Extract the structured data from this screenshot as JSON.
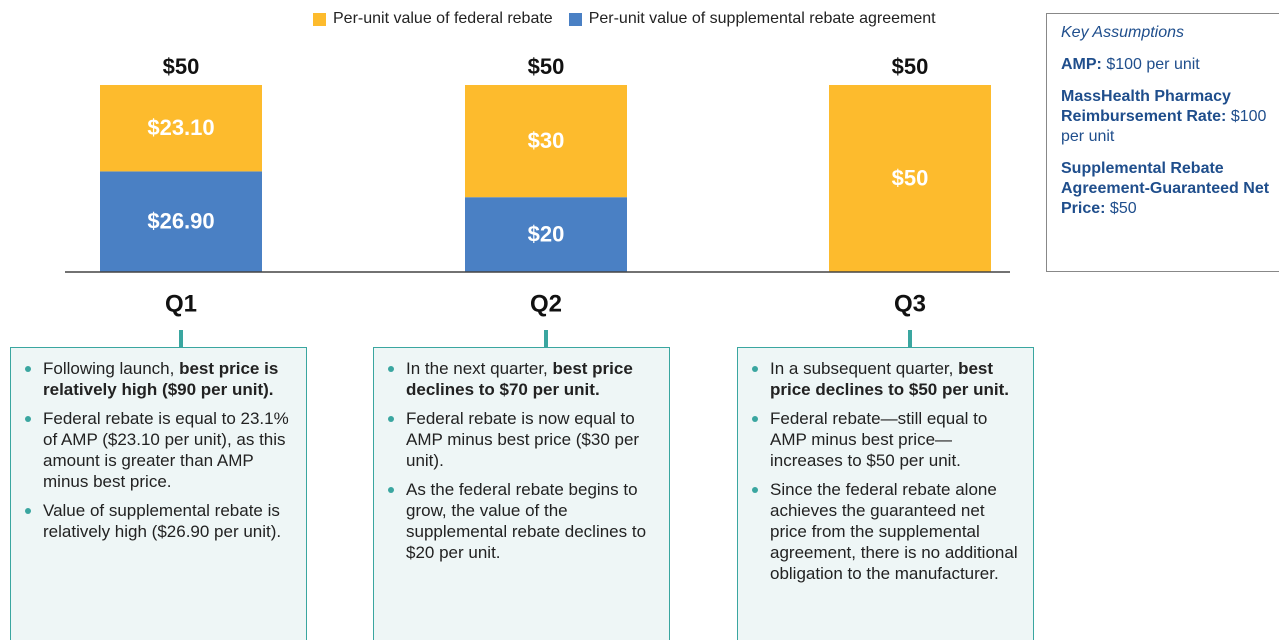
{
  "chart_data": {
    "type": "stacked_bar",
    "categories": [
      "Q1",
      "Q2",
      "Q3"
    ],
    "series": [
      {
        "name": "Per-unit value of federal rebate",
        "color": "#fdbb2d",
        "values": [
          23.1,
          30,
          50
        ],
        "value_labels": [
          "$23.10",
          "$30",
          "$50"
        ]
      },
      {
        "name": "Per-unit value of supplemental rebate agreement",
        "color": "#4a80c4",
        "values": [
          26.9,
          20,
          null
        ],
        "value_labels": [
          "$26.90",
          "$20",
          null
        ]
      }
    ],
    "totals": [
      50,
      50,
      50
    ],
    "total_labels": [
      "$50",
      "$50",
      "$50"
    ]
  },
  "key_assumptions": {
    "title": "Key Assumptions",
    "items": [
      {
        "label": "AMP:",
        "text": " $100 per unit"
      },
      {
        "label": "MassHealth Pharmacy Reimbursement Rate:",
        "text": " $100 per unit"
      },
      {
        "label": "Supplemental Rebate Agreement-Guaranteed Net Price:",
        "text": " $50"
      }
    ]
  },
  "notes": [
    [
      [
        {
          "text": "Following launch, "
        },
        {
          "text": "best price is relatively high ($90 per unit).",
          "bold": true
        }
      ],
      [
        {
          "text": "Federal rebate is equal to 23.1% of AMP ($23.10 per unit), as this amount is greater than AMP minus best price."
        }
      ],
      [
        {
          "text": "Value of supplemental rebate is relatively high ($26.90 per unit)."
        }
      ]
    ],
    [
      [
        {
          "text": "In the next quarter, "
        },
        {
          "text": "best price declines to $70 per unit.",
          "bold": true
        }
      ],
      [
        {
          "text": "Federal rebate is now equal to AMP minus best price ($30 per unit)."
        }
      ],
      [
        {
          "text": "As the federal rebate begins to grow, the value of the supplemental rebate declines to $20 per unit."
        }
      ]
    ],
    [
      [
        {
          "text": "In a subsequent quarter, "
        },
        {
          "text": "best price declines to $50 per unit.",
          "bold": true
        }
      ],
      [
        {
          "text": "Federal rebate—still equal to AMP minus best price—increases to $50 per unit."
        }
      ],
      [
        {
          "text": "Since the federal rebate alone achieves the guaranteed net price from the supplemental agreement, there is no additional obligation to the manufacturer."
        }
      ]
    ]
  ]
}
